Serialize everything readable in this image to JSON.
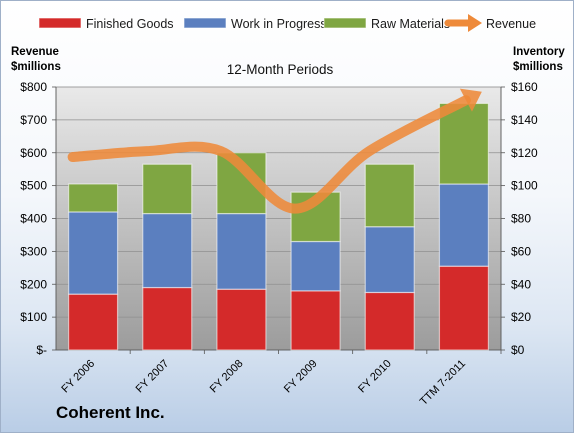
{
  "chart_data": {
    "type": "bar",
    "stacked": true,
    "title": "12-Month Periods",
    "company": "Coherent Inc.",
    "categories": [
      "FY 2006",
      "FY 2007",
      "FY 2008",
      "FY 2009",
      "FY 2010",
      "TTM 7-2011"
    ],
    "left_axis": {
      "label_line1": "Revenue",
      "label_line2": "$millions",
      "ylim": [
        0,
        800
      ],
      "ticks": [
        "$-",
        "$100",
        "$200",
        "$300",
        "$400",
        "$500",
        "$600",
        "$700",
        "$800"
      ]
    },
    "right_axis": {
      "label_line1": "Inventory",
      "label_line2": "$millions",
      "ylim": [
        0,
        160
      ],
      "ticks": [
        "$0",
        "$20",
        "$40",
        "$60",
        "$80",
        "$100",
        "$120",
        "$140",
        "$160"
      ]
    },
    "series": [
      {
        "name": "Finished Goods",
        "axis": "right",
        "color": "#d42a2a",
        "values": [
          34,
          38,
          37,
          36,
          35,
          51
        ]
      },
      {
        "name": "Work in Progress",
        "axis": "right",
        "color": "#5b7fbf",
        "values": [
          50,
          45,
          46,
          30,
          40,
          50
        ]
      },
      {
        "name": "Raw Materials",
        "axis": "right",
        "color": "#7fa642",
        "values": [
          17,
          30,
          37,
          30,
          38,
          49
        ]
      }
    ],
    "line_series": {
      "name": "Revenue",
      "axis": "left",
      "color": "#ee8a3a",
      "values": [
        587,
        605,
        605,
        430,
        605,
        760
      ]
    },
    "legend_position": "top",
    "grid": true
  }
}
